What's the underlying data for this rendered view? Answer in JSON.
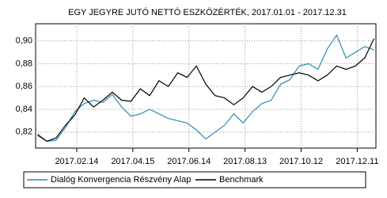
{
  "chart_data": {
    "type": "line",
    "title": "EGY JEGYRE JUTÓ NETTÓ ESZKÖZÉRTÉK, 2017.01.01 - 2017.12.31",
    "x": [
      "2017.01.03",
      "2017.01.13",
      "2017.01.23",
      "2017.02.02",
      "2017.02.12",
      "2017.02.22",
      "2017.03.04",
      "2017.03.14",
      "2017.03.24",
      "2017.04.03",
      "2017.04.13",
      "2017.04.23",
      "2017.05.03",
      "2017.05.13",
      "2017.05.23",
      "2017.06.02",
      "2017.06.12",
      "2017.06.22",
      "2017.07.02",
      "2017.07.12",
      "2017.07.22",
      "2017.08.01",
      "2017.08.11",
      "2017.08.21",
      "2017.08.31",
      "2017.09.10",
      "2017.09.20",
      "2017.09.30",
      "2017.10.10",
      "2017.10.20",
      "2017.10.30",
      "2017.11.09",
      "2017.11.19",
      "2017.11.29",
      "2017.12.09",
      "2017.12.19",
      "2017.12.29"
    ],
    "series": [
      {
        "name": "Dialóg Konvergencia Részvény Alap",
        "color": "#2a8cb4",
        "values": [
          0.817,
          0.812,
          0.813,
          0.824,
          0.838,
          0.845,
          0.848,
          0.846,
          0.853,
          0.842,
          0.834,
          0.836,
          0.84,
          0.836,
          0.832,
          0.83,
          0.828,
          0.822,
          0.814,
          0.82,
          0.826,
          0.836,
          0.828,
          0.838,
          0.845,
          0.848,
          0.862,
          0.866,
          0.878,
          0.88,
          0.875,
          0.893,
          0.905,
          0.885,
          0.89,
          0.895,
          0.892
        ]
      },
      {
        "name": "Benchmark",
        "color": "#000000",
        "values": [
          0.818,
          0.812,
          0.815,
          0.826,
          0.835,
          0.85,
          0.842,
          0.848,
          0.855,
          0.848,
          0.847,
          0.858,
          0.852,
          0.865,
          0.86,
          0.872,
          0.868,
          0.878,
          0.862,
          0.852,
          0.85,
          0.844,
          0.85,
          0.86,
          0.855,
          0.86,
          0.868,
          0.87,
          0.872,
          0.87,
          0.865,
          0.87,
          0.878,
          0.875,
          0.878,
          0.885,
          0.902
        ]
      }
    ],
    "xlim": [
      "2017.01.01",
      "2017.12.31"
    ],
    "xticks": [
      "2017.02.14",
      "2017.04.15",
      "2017.06.14",
      "2017.08.13",
      "2017.10.12",
      "2017.12.11"
    ],
    "ylim": [
      0.806,
      0.915
    ],
    "yticks": [
      {
        "value": 0.82,
        "label": "0,82"
      },
      {
        "value": 0.84,
        "label": "0,84"
      },
      {
        "value": 0.86,
        "label": "0,86"
      },
      {
        "value": 0.88,
        "label": "0,88"
      },
      {
        "value": 0.9,
        "label": "0,90"
      }
    ],
    "grid": true,
    "legend": "bottom"
  }
}
